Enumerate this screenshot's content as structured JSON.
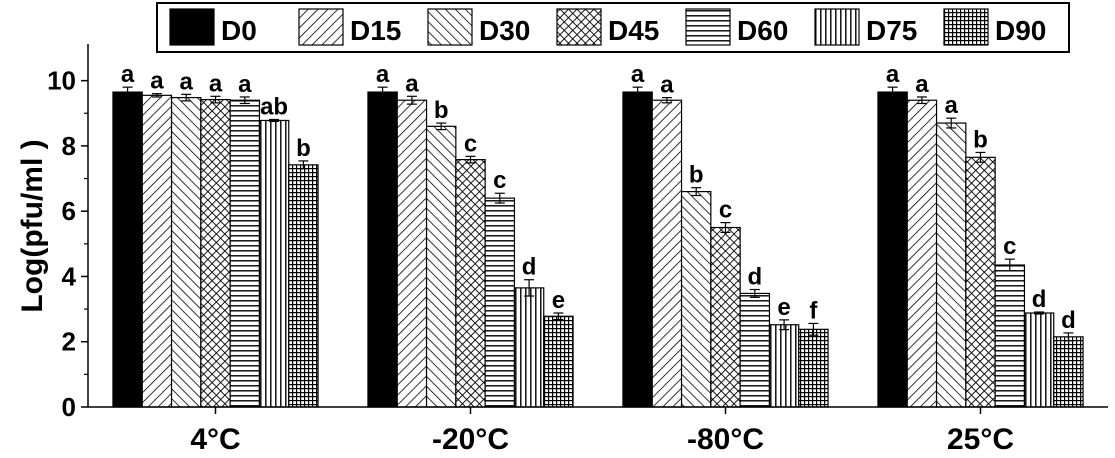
{
  "chart_data": {
    "type": "bar",
    "title": "",
    "xlabel": "",
    "ylabel": "Log(pfu/ml )",
    "ylim": [
      0,
      11
    ],
    "yticks": [
      "0",
      "2",
      "4",
      "6",
      "8",
      "10"
    ],
    "grid": false,
    "legend_position": "top",
    "categories": [
      "4°C",
      "-20°C",
      "-80°C",
      "25°C"
    ],
    "series": [
      {
        "name": "D0",
        "pattern": "solid",
        "values": [
          9.65,
          9.65,
          9.65,
          9.65
        ],
        "errors": [
          0.15,
          0.15,
          0.15,
          0.15
        ],
        "labels": [
          "a",
          "a",
          "a",
          "a"
        ]
      },
      {
        "name": "D15",
        "pattern": "diag-right",
        "values": [
          9.55,
          9.4,
          9.4,
          9.4
        ],
        "errors": [
          0.05,
          0.12,
          0.08,
          0.1
        ],
        "labels": [
          "a",
          "a",
          "a",
          "a"
        ]
      },
      {
        "name": "D30",
        "pattern": "diag-left",
        "values": [
          9.48,
          8.6,
          6.6,
          8.7
        ],
        "errors": [
          0.1,
          0.1,
          0.12,
          0.15
        ],
        "labels": [
          "a",
          "b",
          "b",
          "a"
        ]
      },
      {
        "name": "D45",
        "pattern": "crosshatch",
        "values": [
          9.42,
          7.58,
          5.5,
          7.65
        ],
        "errors": [
          0.1,
          0.1,
          0.15,
          0.15
        ],
        "labels": [
          "a",
          "c",
          "c",
          "b"
        ]
      },
      {
        "name": "D60",
        "pattern": "horizontal",
        "values": [
          9.4,
          6.4,
          3.48,
          4.35
        ],
        "errors": [
          0.1,
          0.15,
          0.12,
          0.18
        ],
        "labels": [
          "a",
          "c",
          "d",
          "c"
        ]
      },
      {
        "name": "D75",
        "pattern": "vertical",
        "values": [
          8.78,
          3.65,
          2.52,
          2.88
        ],
        "errors": [
          0.03,
          0.25,
          0.15,
          0.03
        ],
        "labels": [
          "ab",
          "d",
          "e",
          "d"
        ]
      },
      {
        "name": "D90",
        "pattern": "grid",
        "values": [
          7.42,
          2.78,
          2.38,
          2.15
        ],
        "errors": [
          0.12,
          0.1,
          0.18,
          0.12
        ],
        "labels": [
          "b",
          "e",
          "f",
          "d"
        ]
      }
    ]
  }
}
